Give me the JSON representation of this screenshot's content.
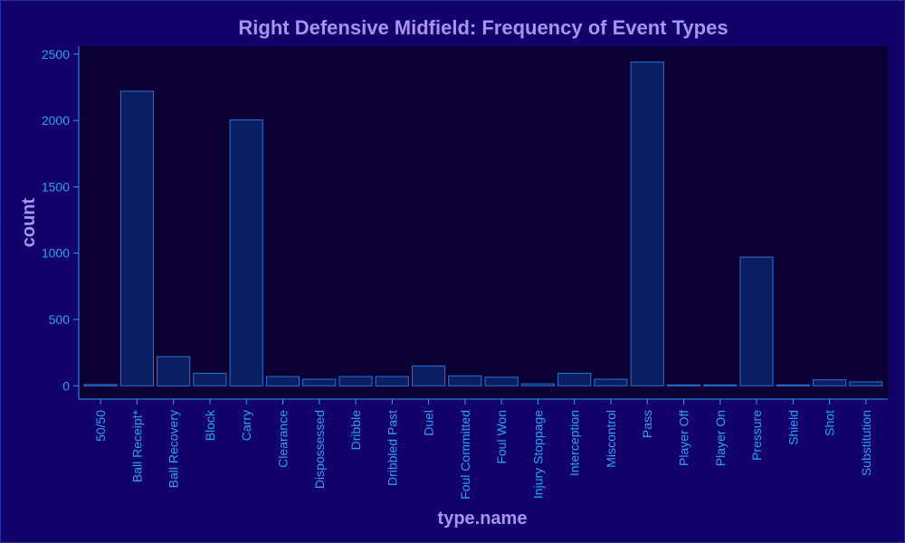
{
  "chart_data": {
    "type": "bar",
    "title": "Right Defensive Midfield: Frequency of Event Types",
    "xlabel": "type.name",
    "ylabel": "count",
    "categories": [
      "50/50",
      "Ball Receipt*",
      "Ball Recovery",
      "Block",
      "Carry",
      "Clearance",
      "Dispossessed",
      "Dribble",
      "Dribbled Past",
      "Duel",
      "Foul Committed",
      "Foul Won",
      "Injury Stoppage",
      "Interception",
      "Miscontrol",
      "Pass",
      "Player Off",
      "Player On",
      "Pressure",
      "Shield",
      "Shot",
      "Substitution"
    ],
    "values": [
      10,
      2220,
      220,
      95,
      2005,
      70,
      50,
      70,
      70,
      150,
      75,
      65,
      15,
      95,
      50,
      2440,
      8,
      8,
      970,
      8,
      45,
      30
    ],
    "ylim": [
      -100,
      2560
    ],
    "yticks": [
      0,
      500,
      1000,
      1500,
      2000,
      2500
    ],
    "grid": false,
    "colors": {
      "background": "#12006b",
      "plot_background": "#0a0033",
      "bar_fill": "#0b1e63",
      "bar_stroke": "#2a72d6",
      "axis": "#2ea0f0",
      "title": "#a993f0"
    }
  }
}
